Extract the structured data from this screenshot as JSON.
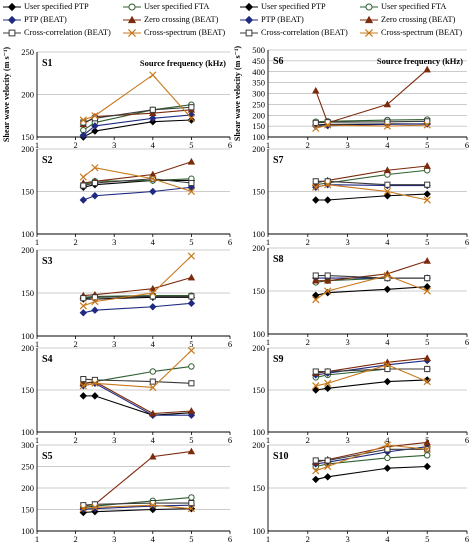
{
  "legend_left": {
    "items": [
      {
        "label": "User specified PTP",
        "series": "User specified PTP"
      },
      {
        "label": "User specified FTA",
        "series": "User specified FTA"
      },
      {
        "label": "PTP (BEAT)",
        "series": "PTP (BEAT)"
      },
      {
        "label": "Zero crossing (BEAT)",
        "series": "Zero crossing (BEAT)"
      },
      {
        "label": "Cross-correlation (BEAT)",
        "series": "Cross-correlation (BEAT)"
      },
      {
        "label": "Cross-spectrum (BEAT)",
        "series": "Cross-spectrum (BEAT)"
      }
    ]
  },
  "legend_right": {
    "items": [
      {
        "label": "User specified PTP",
        "series": "User specified PTP"
      },
      {
        "label": "User specified FTA",
        "series": "User specified FTA"
      },
      {
        "label": "PTP (BEAT)",
        "series": "PTP (BEAT)"
      },
      {
        "label": "Zero crossing (BEAT)",
        "series": "Zero crossing (BEAT)"
      },
      {
        "label": "Cross-correlation (BEAT)",
        "series": "Cross-correlation (BEAT)"
      },
      {
        "label": "Cross-spectrum (BEAT)",
        "series": "Cross-spectrum (BEAT)"
      }
    ]
  },
  "series_styles": [
    {
      "name": "User specified PTP",
      "color": "#000000",
      "marker": "diamond-filled"
    },
    {
      "name": "User specified FTA",
      "color": "#2f5f2f",
      "marker": "circle-open"
    },
    {
      "name": "PTP (BEAT)",
      "color": "#1f2a80",
      "marker": "diamond-filled"
    },
    {
      "name": "Zero crossing (BEAT)",
      "color": "#7b2a0c",
      "marker": "triangle-filled"
    },
    {
      "name": "Cross-correlation (BEAT)",
      "color": "#3a3a3a",
      "marker": "square-open"
    },
    {
      "name": "Cross-spectrum (BEAT)",
      "color": "#c8781c",
      "marker": "x"
    }
  ],
  "chart_data": [
    {
      "type": "line",
      "panel": "S1",
      "label": "S1",
      "ylabel": "Shear wave velocity (m s⁻¹)",
      "xlabel": "Source frequency (kHz)",
      "xlim": [
        1,
        6
      ],
      "xticks": [
        1,
        2,
        3,
        4,
        5,
        6
      ],
      "ylim": [
        150,
        250
      ],
      "yticks": [
        150,
        200,
        250
      ],
      "x": [
        2.2,
        2.5,
        4,
        5
      ],
      "series": [
        {
          "name": "User specified PTP",
          "values": [
            150,
            157,
            168,
            170
          ]
        },
        {
          "name": "User specified FTA",
          "values": [
            158,
            167,
            182,
            188
          ]
        },
        {
          "name": "PTP (BEAT)",
          "values": [
            152,
            163,
            172,
            176
          ]
        },
        {
          "name": "Zero crossing (BEAT)",
          "values": [
            165,
            174,
            178,
            182
          ]
        },
        {
          "name": "Cross-correlation (BEAT)",
          "values": [
            167,
            172,
            182,
            185
          ]
        },
        {
          "name": "Cross-spectrum (BEAT)",
          "values": [
            170,
            175,
            223,
            172
          ]
        }
      ]
    },
    {
      "type": "line",
      "panel": "S2",
      "label": "S2",
      "xlim": [
        1,
        6
      ],
      "xticks": [
        1,
        2,
        3,
        4,
        5,
        6
      ],
      "ylim": [
        100,
        200
      ],
      "yticks": [
        100,
        150,
        200
      ],
      "x": [
        2.2,
        2.5,
        4,
        5
      ],
      "series": [
        {
          "name": "User specified PTP",
          "values": [
            155,
            158,
            163,
            163
          ]
        },
        {
          "name": "User specified FTA",
          "values": [
            158,
            162,
            163,
            165
          ]
        },
        {
          "name": "PTP (BEAT)",
          "values": [
            140,
            145,
            150,
            155
          ]
        },
        {
          "name": "Zero crossing (BEAT)",
          "values": [
            160,
            162,
            170,
            185
          ]
        },
        {
          "name": "Cross-correlation (BEAT)",
          "values": [
            157,
            160,
            165,
            160
          ]
        },
        {
          "name": "Cross-spectrum (BEAT)",
          "values": [
            167,
            178,
            165,
            150
          ]
        }
      ]
    },
    {
      "type": "line",
      "panel": "S3",
      "label": "S3",
      "xlim": [
        1,
        6
      ],
      "xticks": [
        1,
        2,
        3,
        4,
        5,
        6
      ],
      "ylim": [
        100,
        200
      ],
      "yticks": [
        100,
        150,
        200
      ],
      "x": [
        2.2,
        2.5,
        4,
        5
      ],
      "series": [
        {
          "name": "User specified PTP",
          "values": [
            143,
            143,
            145,
            145
          ]
        },
        {
          "name": "User specified FTA",
          "values": [
            145,
            146,
            147,
            147
          ]
        },
        {
          "name": "PTP (BEAT)",
          "values": [
            127,
            130,
            134,
            138
          ]
        },
        {
          "name": "Zero crossing (BEAT)",
          "values": [
            147,
            148,
            155,
            168
          ]
        },
        {
          "name": "Cross-correlation (BEAT)",
          "values": [
            144,
            145,
            146,
            146
          ]
        },
        {
          "name": "Cross-spectrum (BEAT)",
          "values": [
            135,
            140,
            150,
            193
          ]
        }
      ]
    },
    {
      "type": "line",
      "panel": "S4",
      "label": "S4",
      "xlim": [
        1,
        6
      ],
      "xticks": [
        1,
        2,
        3,
        4,
        5,
        6
      ],
      "ylim": [
        100,
        200
      ],
      "yticks": [
        100,
        150,
        200
      ],
      "x": [
        2.2,
        2.5,
        4,
        5
      ],
      "series": [
        {
          "name": "User specified PTP",
          "values": [
            143,
            143,
            120,
            123
          ]
        },
        {
          "name": "User specified FTA",
          "values": [
            157,
            160,
            172,
            178
          ]
        },
        {
          "name": "PTP (BEAT)",
          "values": [
            155,
            158,
            120,
            120
          ]
        },
        {
          "name": "Zero crossing (BEAT)",
          "values": [
            158,
            160,
            122,
            125
          ]
        },
        {
          "name": "Cross-correlation (BEAT)",
          "values": [
            163,
            162,
            160,
            158
          ]
        },
        {
          "name": "Cross-spectrum (BEAT)",
          "values": [
            155,
            158,
            153,
            197
          ]
        }
      ]
    },
    {
      "type": "line",
      "panel": "S5",
      "label": "S5",
      "xlim": [
        1,
        6
      ],
      "xticks": [
        1,
        2,
        3,
        4,
        5,
        6
      ],
      "ylim": [
        100,
        300
      ],
      "yticks": [
        100,
        150,
        200,
        250,
        300
      ],
      "x": [
        2.2,
        2.5,
        4,
        5
      ],
      "series": [
        {
          "name": "User specified PTP",
          "values": [
            143,
            145,
            150,
            152
          ]
        },
        {
          "name": "User specified FTA",
          "values": [
            155,
            158,
            170,
            178
          ]
        },
        {
          "name": "PTP (BEAT)",
          "values": [
            150,
            152,
            158,
            160
          ]
        },
        {
          "name": "Zero crossing (BEAT)",
          "values": [
            158,
            162,
            273,
            285
          ]
        },
        {
          "name": "Cross-correlation (BEAT)",
          "values": [
            160,
            162,
            165,
            165
          ]
        },
        {
          "name": "Cross-spectrum (BEAT)",
          "values": [
            152,
            155,
            160,
            152
          ]
        }
      ]
    },
    {
      "type": "line",
      "panel": "S6",
      "label": "S6",
      "ylabel": "Shear wave velocity (m s⁻¹)",
      "xlabel": "Source frequency (kHz)",
      "xlim": [
        1,
        6
      ],
      "xticks": [
        1,
        2,
        3,
        4,
        5,
        6
      ],
      "ylim": [
        100,
        500
      ],
      "yticks": [
        100,
        150,
        200,
        250,
        300,
        350,
        400,
        450,
        500
      ],
      "x": [
        2.2,
        2.5,
        4,
        5
      ],
      "series": [
        {
          "name": "User specified PTP",
          "values": [
            155,
            158,
            160,
            160
          ]
        },
        {
          "name": "User specified FTA",
          "values": [
            170,
            172,
            178,
            180
          ]
        },
        {
          "name": "PTP (BEAT)",
          "values": [
            150,
            152,
            158,
            160
          ]
        },
        {
          "name": "Zero crossing (BEAT)",
          "values": [
            313,
            165,
            250,
            410
          ]
        },
        {
          "name": "Cross-correlation (BEAT)",
          "values": [
            165,
            168,
            170,
            172
          ]
        },
        {
          "name": "Cross-spectrum (BEAT)",
          "values": [
            140,
            155,
            150,
            155
          ]
        }
      ]
    },
    {
      "type": "line",
      "panel": "S7",
      "label": "S7",
      "xlim": [
        1,
        6
      ],
      "xticks": [
        1,
        2,
        3,
        4,
        5,
        6
      ],
      "ylim": [
        100,
        200
      ],
      "yticks": [
        100,
        150,
        200
      ],
      "x": [
        2.2,
        2.5,
        4,
        5
      ],
      "series": [
        {
          "name": "User specified PTP",
          "values": [
            140,
            140,
            145,
            147
          ]
        },
        {
          "name": "User specified FTA",
          "values": [
            158,
            160,
            170,
            175
          ]
        },
        {
          "name": "PTP (BEAT)",
          "values": [
            155,
            158,
            157,
            157
          ]
        },
        {
          "name": "Zero crossing (BEAT)",
          "values": [
            160,
            163,
            175,
            180
          ]
        },
        {
          "name": "Cross-correlation (BEAT)",
          "values": [
            162,
            162,
            158,
            158
          ]
        },
        {
          "name": "Cross-spectrum (BEAT)",
          "values": [
            155,
            158,
            150,
            140
          ]
        }
      ]
    },
    {
      "type": "line",
      "panel": "S8",
      "label": "S8",
      "xlim": [
        1,
        6
      ],
      "xticks": [
        1,
        2,
        3,
        4,
        5,
        6
      ],
      "ylim": [
        100,
        200
      ],
      "yticks": [
        100,
        150,
        200
      ],
      "x": [
        2.2,
        2.5,
        4,
        5
      ],
      "series": [
        {
          "name": "User specified PTP",
          "values": [
            145,
            148,
            152,
            155
          ]
        },
        {
          "name": "User specified FTA",
          "values": [
            160,
            162,
            165,
            165
          ]
        },
        {
          "name": "PTP (BEAT)",
          "values": [
            165,
            165,
            165,
            165
          ]
        },
        {
          "name": "Zero crossing (BEAT)",
          "values": [
            162,
            162,
            170,
            185
          ]
        },
        {
          "name": "Cross-correlation (BEAT)",
          "values": [
            168,
            168,
            165,
            165
          ]
        },
        {
          "name": "Cross-spectrum (BEAT)",
          "values": [
            140,
            150,
            168,
            150
          ]
        }
      ]
    },
    {
      "type": "line",
      "panel": "S9",
      "label": "S9",
      "xlim": [
        1,
        6
      ],
      "xticks": [
        1,
        2,
        3,
        4,
        5,
        6
      ],
      "ylim": [
        100,
        200
      ],
      "yticks": [
        100,
        150,
        200
      ],
      "x": [
        2.2,
        2.5,
        4,
        5
      ],
      "series": [
        {
          "name": "User specified PTP",
          "values": [
            150,
            152,
            160,
            162
          ]
        },
        {
          "name": "User specified FTA",
          "values": [
            165,
            168,
            175,
            175
          ]
        },
        {
          "name": "PTP (BEAT)",
          "values": [
            168,
            170,
            180,
            185
          ]
        },
        {
          "name": "Zero crossing (BEAT)",
          "values": [
            170,
            172,
            183,
            188
          ]
        },
        {
          "name": "Cross-correlation (BEAT)",
          "values": [
            172,
            172,
            175,
            175
          ]
        },
        {
          "name": "Cross-spectrum (BEAT)",
          "values": [
            155,
            158,
            180,
            160
          ]
        }
      ]
    },
    {
      "type": "line",
      "panel": "S10",
      "label": "S10",
      "xlim": [
        1,
        6
      ],
      "xticks": [
        1,
        2,
        3,
        4,
        5,
        6
      ],
      "ylim": [
        100,
        200
      ],
      "yticks": [
        100,
        150,
        200
      ],
      "x": [
        2.2,
        2.5,
        4,
        5
      ],
      "series": [
        {
          "name": "User specified PTP",
          "values": [
            160,
            163,
            173,
            175
          ]
        },
        {
          "name": "User specified FTA",
          "values": [
            175,
            178,
            185,
            188
          ]
        },
        {
          "name": "PTP (BEAT)",
          "values": [
            178,
            180,
            192,
            198
          ]
        },
        {
          "name": "Zero crossing (BEAT)",
          "values": [
            180,
            183,
            198,
            203
          ]
        },
        {
          "name": "Cross-correlation (BEAT)",
          "values": [
            182,
            182,
            195,
            195
          ]
        },
        {
          "name": "Cross-spectrum (BEAT)",
          "values": [
            170,
            175,
            200,
            195
          ]
        }
      ]
    }
  ]
}
